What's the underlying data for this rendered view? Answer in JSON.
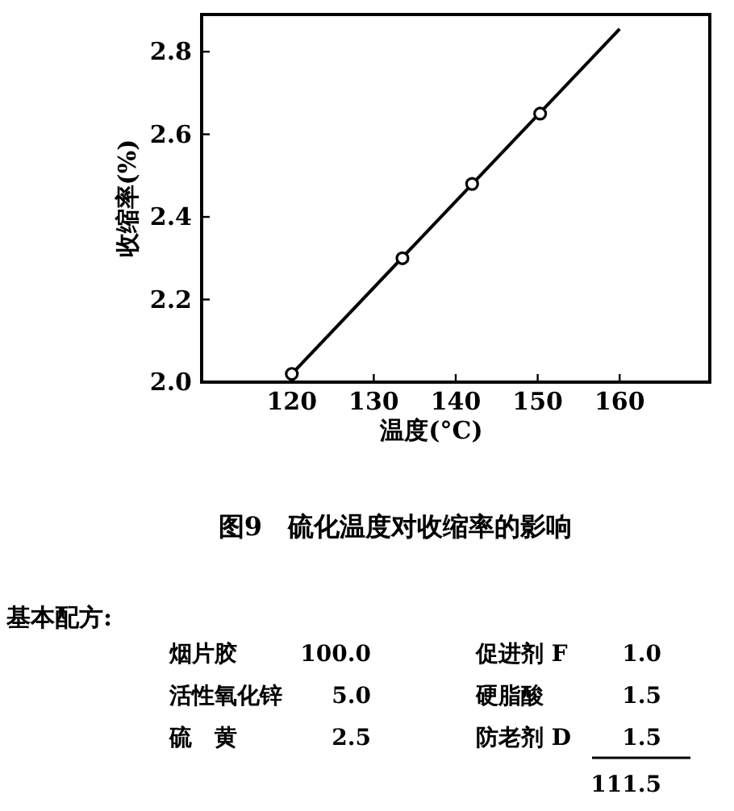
{
  "chart_data": {
    "type": "scatter",
    "title": "图9　硫化温度对收缩率的影响",
    "xlabel": "温度(°C)",
    "ylabel": "收缩率(%)",
    "series": [
      {
        "type": "line",
        "color": "#000000",
        "marker": "none",
        "x": [
          120,
          160
        ],
        "values": [
          2.02,
          2.855
        ]
      },
      {
        "color": "#000000",
        "x": [
          120,
          133.5,
          142,
          150.3
        ],
        "values": [
          2.02,
          2.3,
          2.48,
          2.65
        ]
      }
    ],
    "xlim": [
      109,
      171
    ],
    "ylim": [
      2.0,
      2.89
    ],
    "xticks": [
      120,
      130,
      140,
      150,
      160
    ],
    "yticks": [
      {
        "value": 2.0,
        "label": "2.0"
      },
      2.2,
      2.4,
      2.6,
      2.8
    ],
    "grid": false,
    "annotations": [
      "基本配方:",
      "烟片胶",
      "100.0",
      "活性氧化锌",
      "5.0",
      "硫　黄",
      "2.5",
      "促进剂 F",
      "1.0",
      "硬脂酸",
      "1.5",
      "防老剂 D",
      "1.5",
      "111.5"
    ]
  }
}
